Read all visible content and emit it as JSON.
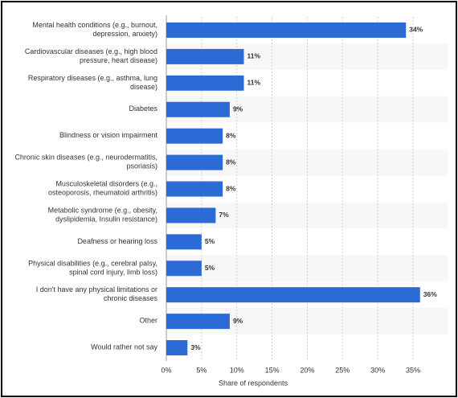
{
  "chart_data": {
    "type": "bar",
    "orientation": "horizontal",
    "categories": [
      "Mental health conditions (e.g., burnout, depression, anxiety)",
      "Cardiovascular diseases (e.g., high blood pressure, heart disease)",
      "Respiratory diseases (e.g., asthma, lung disease)",
      "Diabetes",
      "Blindness or vision impairment",
      "Chronic skin diseases (e.g., neurodermatitis, psoriasis)",
      "Musculoskeletal disorders (e.g., osteoporosis, rheumatoid arthritis)",
      "Metabolic syndrome (e.g., obesity, dyslipidemia, Insulin resistance)",
      "Deafness or hearing loss",
      "Physical disabilities (e.g., cerebral palsy, spinal cord injury, limb loss)",
      "I don't have any physical limitations or chronic diseases",
      "Other",
      "Would rather not say"
    ],
    "values": [
      34,
      11,
      11,
      9,
      8,
      8,
      8,
      7,
      5,
      5,
      36,
      9,
      3
    ],
    "value_labels": [
      "34%",
      "11%",
      "11%",
      "9%",
      "8%",
      "8%",
      "8%",
      "7%",
      "5%",
      "5%",
      "36%",
      "9%",
      "3%"
    ],
    "color": "#2c6bd6",
    "xlabel": "Share of respondents",
    "xlim": [
      0,
      40
    ],
    "xticks": [
      {
        "value": 0,
        "label": "0%"
      },
      {
        "value": 5,
        "label": "5%"
      },
      {
        "value": 10,
        "label": "10%"
      },
      {
        "value": 15,
        "label": "15%"
      },
      {
        "value": 20,
        "label": "20%"
      },
      {
        "value": 25,
        "label": "25%"
      },
      {
        "value": 30,
        "label": "30%"
      },
      {
        "value": 35,
        "label": "35%"
      }
    ],
    "grid": true
  }
}
